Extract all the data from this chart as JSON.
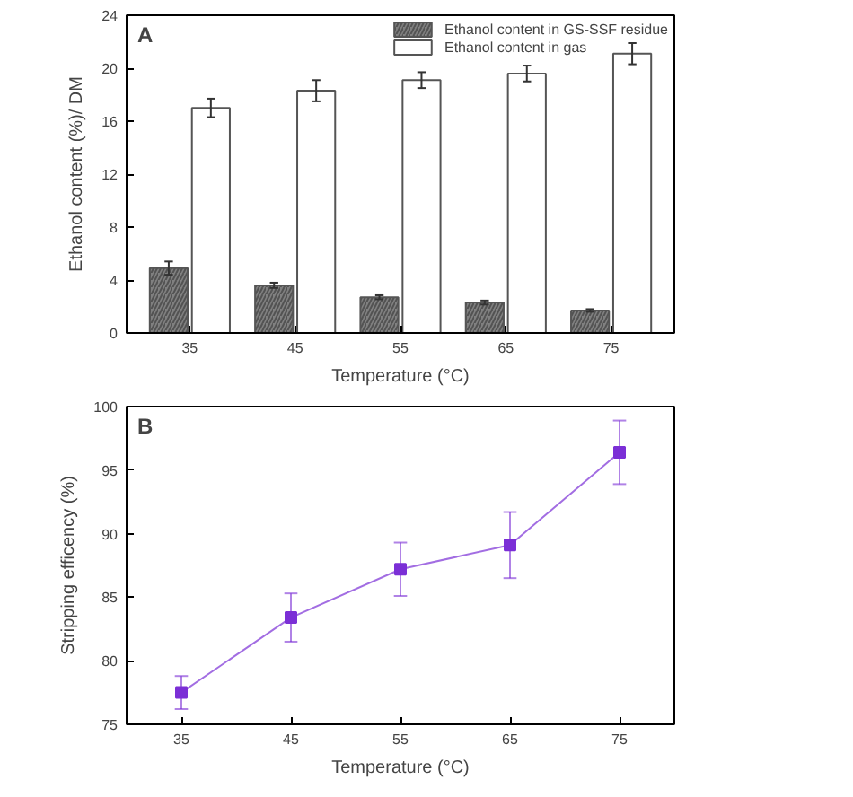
{
  "chart_data": [
    {
      "type": "bar",
      "title": "A",
      "xlabel": "Temperature (°C)",
      "ylabel": "Ethanol content (%)/ DM",
      "categories": [
        "35",
        "45",
        "55",
        "65",
        "75"
      ],
      "ylim": [
        0,
        24
      ],
      "yticks": [
        0,
        4,
        8,
        12,
        16,
        20,
        24
      ],
      "legend": "top right",
      "series": [
        {
          "name": "Ethanol content in GS-SSF residue",
          "color": "#808080",
          "values": [
            4.9,
            3.6,
            2.7,
            2.3,
            1.7
          ],
          "errors": [
            0.5,
            0.2,
            0.15,
            0.15,
            0.1
          ]
        },
        {
          "name": "Ethanol content in gas",
          "color": "#ffffff",
          "values": [
            17.0,
            18.3,
            19.1,
            19.6,
            21.1
          ],
          "errors": [
            0.7,
            0.8,
            0.6,
            0.6,
            0.8
          ]
        }
      ]
    },
    {
      "type": "line",
      "title": "B",
      "xlabel": "Temperature (°C)",
      "ylabel": "Stripping efficency (%)",
      "x": [
        35,
        45,
        55,
        65,
        75
      ],
      "xlim": [
        30,
        80
      ],
      "xticks": [
        35,
        45,
        55,
        65,
        75
      ],
      "ylim": [
        75,
        100
      ],
      "yticks": [
        75,
        80,
        85,
        90,
        95,
        100
      ],
      "marker": "square",
      "series": [
        {
          "color": "#7b2fd6",
          "values": [
            77.5,
            83.4,
            87.2,
            89.1,
            96.4
          ],
          "errors": [
            [
              76.2,
              78.8
            ],
            [
              81.5,
              85.3
            ],
            [
              85.1,
              89.3
            ],
            [
              86.5,
              91.7
            ],
            [
              93.9,
              98.9
            ]
          ]
        }
      ]
    }
  ]
}
